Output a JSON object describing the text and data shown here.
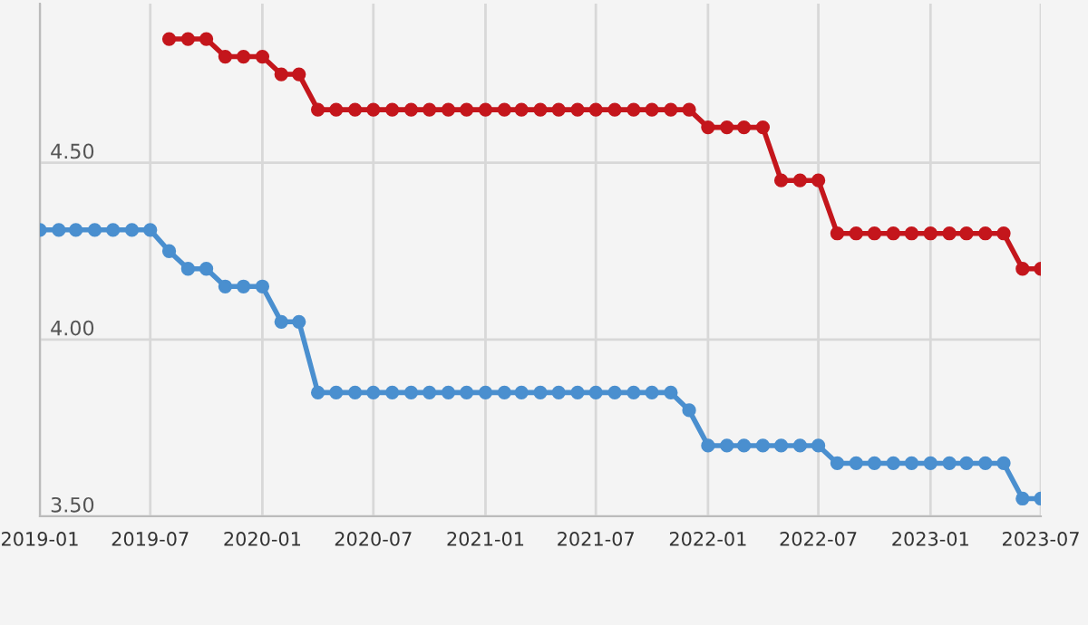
{
  "chart_data": {
    "type": "line",
    "x": [
      "2019-01",
      "2019-02",
      "2019-03",
      "2019-04",
      "2019-05",
      "2019-06",
      "2019-07",
      "2019-08",
      "2019-09",
      "2019-10",
      "2019-11",
      "2019-12",
      "2020-01",
      "2020-02",
      "2020-03",
      "2020-04",
      "2020-05",
      "2020-06",
      "2020-07",
      "2020-08",
      "2020-09",
      "2020-10",
      "2020-11",
      "2020-12",
      "2021-01",
      "2021-02",
      "2021-03",
      "2021-04",
      "2021-05",
      "2021-06",
      "2021-07",
      "2021-08",
      "2021-09",
      "2021-10",
      "2021-11",
      "2021-12",
      "2022-01",
      "2022-02",
      "2022-03",
      "2022-04",
      "2022-05",
      "2022-06",
      "2022-07",
      "2022-08",
      "2022-09",
      "2022-10",
      "2022-11",
      "2022-12",
      "2023-01",
      "2023-02",
      "2023-03",
      "2023-04",
      "2023-05",
      "2023-06",
      "2023-07"
    ],
    "series": [
      {
        "color": "#c4161c",
        "values": [
          null,
          null,
          null,
          null,
          null,
          null,
          null,
          4.85,
          4.85,
          4.85,
          4.8,
          4.8,
          4.8,
          4.75,
          4.75,
          4.65,
          4.65,
          4.65,
          4.65,
          4.65,
          4.65,
          4.65,
          4.65,
          4.65,
          4.65,
          4.65,
          4.65,
          4.65,
          4.65,
          4.65,
          4.65,
          4.65,
          4.65,
          4.65,
          4.65,
          4.65,
          4.6,
          4.6,
          4.6,
          4.6,
          4.45,
          4.45,
          4.45,
          4.3,
          4.3,
          4.3,
          4.3,
          4.3,
          4.3,
          4.3,
          4.3,
          4.3,
          4.3,
          4.2,
          4.2
        ]
      },
      {
        "color": "#4a8fcf",
        "values": [
          4.31,
          4.31,
          4.31,
          4.31,
          4.31,
          4.31,
          4.31,
          4.25,
          4.2,
          4.2,
          4.15,
          4.15,
          4.15,
          4.05,
          4.05,
          3.85,
          3.85,
          3.85,
          3.85,
          3.85,
          3.85,
          3.85,
          3.85,
          3.85,
          3.85,
          3.85,
          3.85,
          3.85,
          3.85,
          3.85,
          3.85,
          3.85,
          3.85,
          3.85,
          3.85,
          3.8,
          3.7,
          3.7,
          3.7,
          3.7,
          3.7,
          3.7,
          3.7,
          3.65,
          3.65,
          3.65,
          3.65,
          3.65,
          3.65,
          3.65,
          3.65,
          3.65,
          3.65,
          3.55,
          3.55
        ]
      }
    ],
    "xlim": [
      "2019-01",
      "2023-07"
    ],
    "xticks": [
      {
        "value": "2019-01",
        "label": "2019-01"
      },
      {
        "value": "2019-07",
        "label": "2019-07"
      },
      {
        "value": "2020-01",
        "label": "2020-01"
      },
      {
        "value": "2020-07",
        "label": "2020-07"
      },
      {
        "value": "2021-01",
        "label": "2021-01"
      },
      {
        "value": "2021-07",
        "label": "2021-07"
      },
      {
        "value": "2022-01",
        "label": "2022-01"
      },
      {
        "value": "2022-07",
        "label": "2022-07"
      },
      {
        "value": "2023-01",
        "label": "2023-01"
      },
      {
        "value": "2023-07",
        "label": "2023-07"
      }
    ],
    "ylim": [
      3.5,
      4.95
    ],
    "yticks": [
      {
        "value": 3.5,
        "label": "3.50"
      },
      {
        "value": 4.0,
        "label": "4.00"
      },
      {
        "value": 4.5,
        "label": "4.50"
      }
    ],
    "grid": true,
    "marker": "circle",
    "line_style": "solid"
  }
}
